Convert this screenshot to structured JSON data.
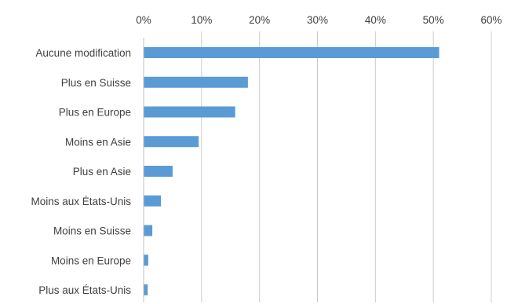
{
  "chart_data": {
    "type": "bar",
    "orientation": "horizontal",
    "title": "",
    "xlabel": "",
    "ylabel": "",
    "xlim": [
      0,
      60
    ],
    "x_ticks": [
      "0%",
      "10%",
      "20%",
      "30%",
      "40%",
      "50%",
      "60%"
    ],
    "x_axis_position": "top",
    "grid": true,
    "legend": "none",
    "bar_color": "#5b9bd5",
    "categories": [
      "Aucune modification",
      "Plus en Suisse",
      "Plus en Europe",
      "Moins en Asie",
      "Plus en Asie",
      "Moins aux États-Unis",
      "Moins en Suisse",
      "Moins en Europe",
      "Plus aux États-Unis"
    ],
    "values": [
      51,
      18,
      15.8,
      9.5,
      5,
      3,
      1.5,
      0.8,
      0.7
    ]
  }
}
